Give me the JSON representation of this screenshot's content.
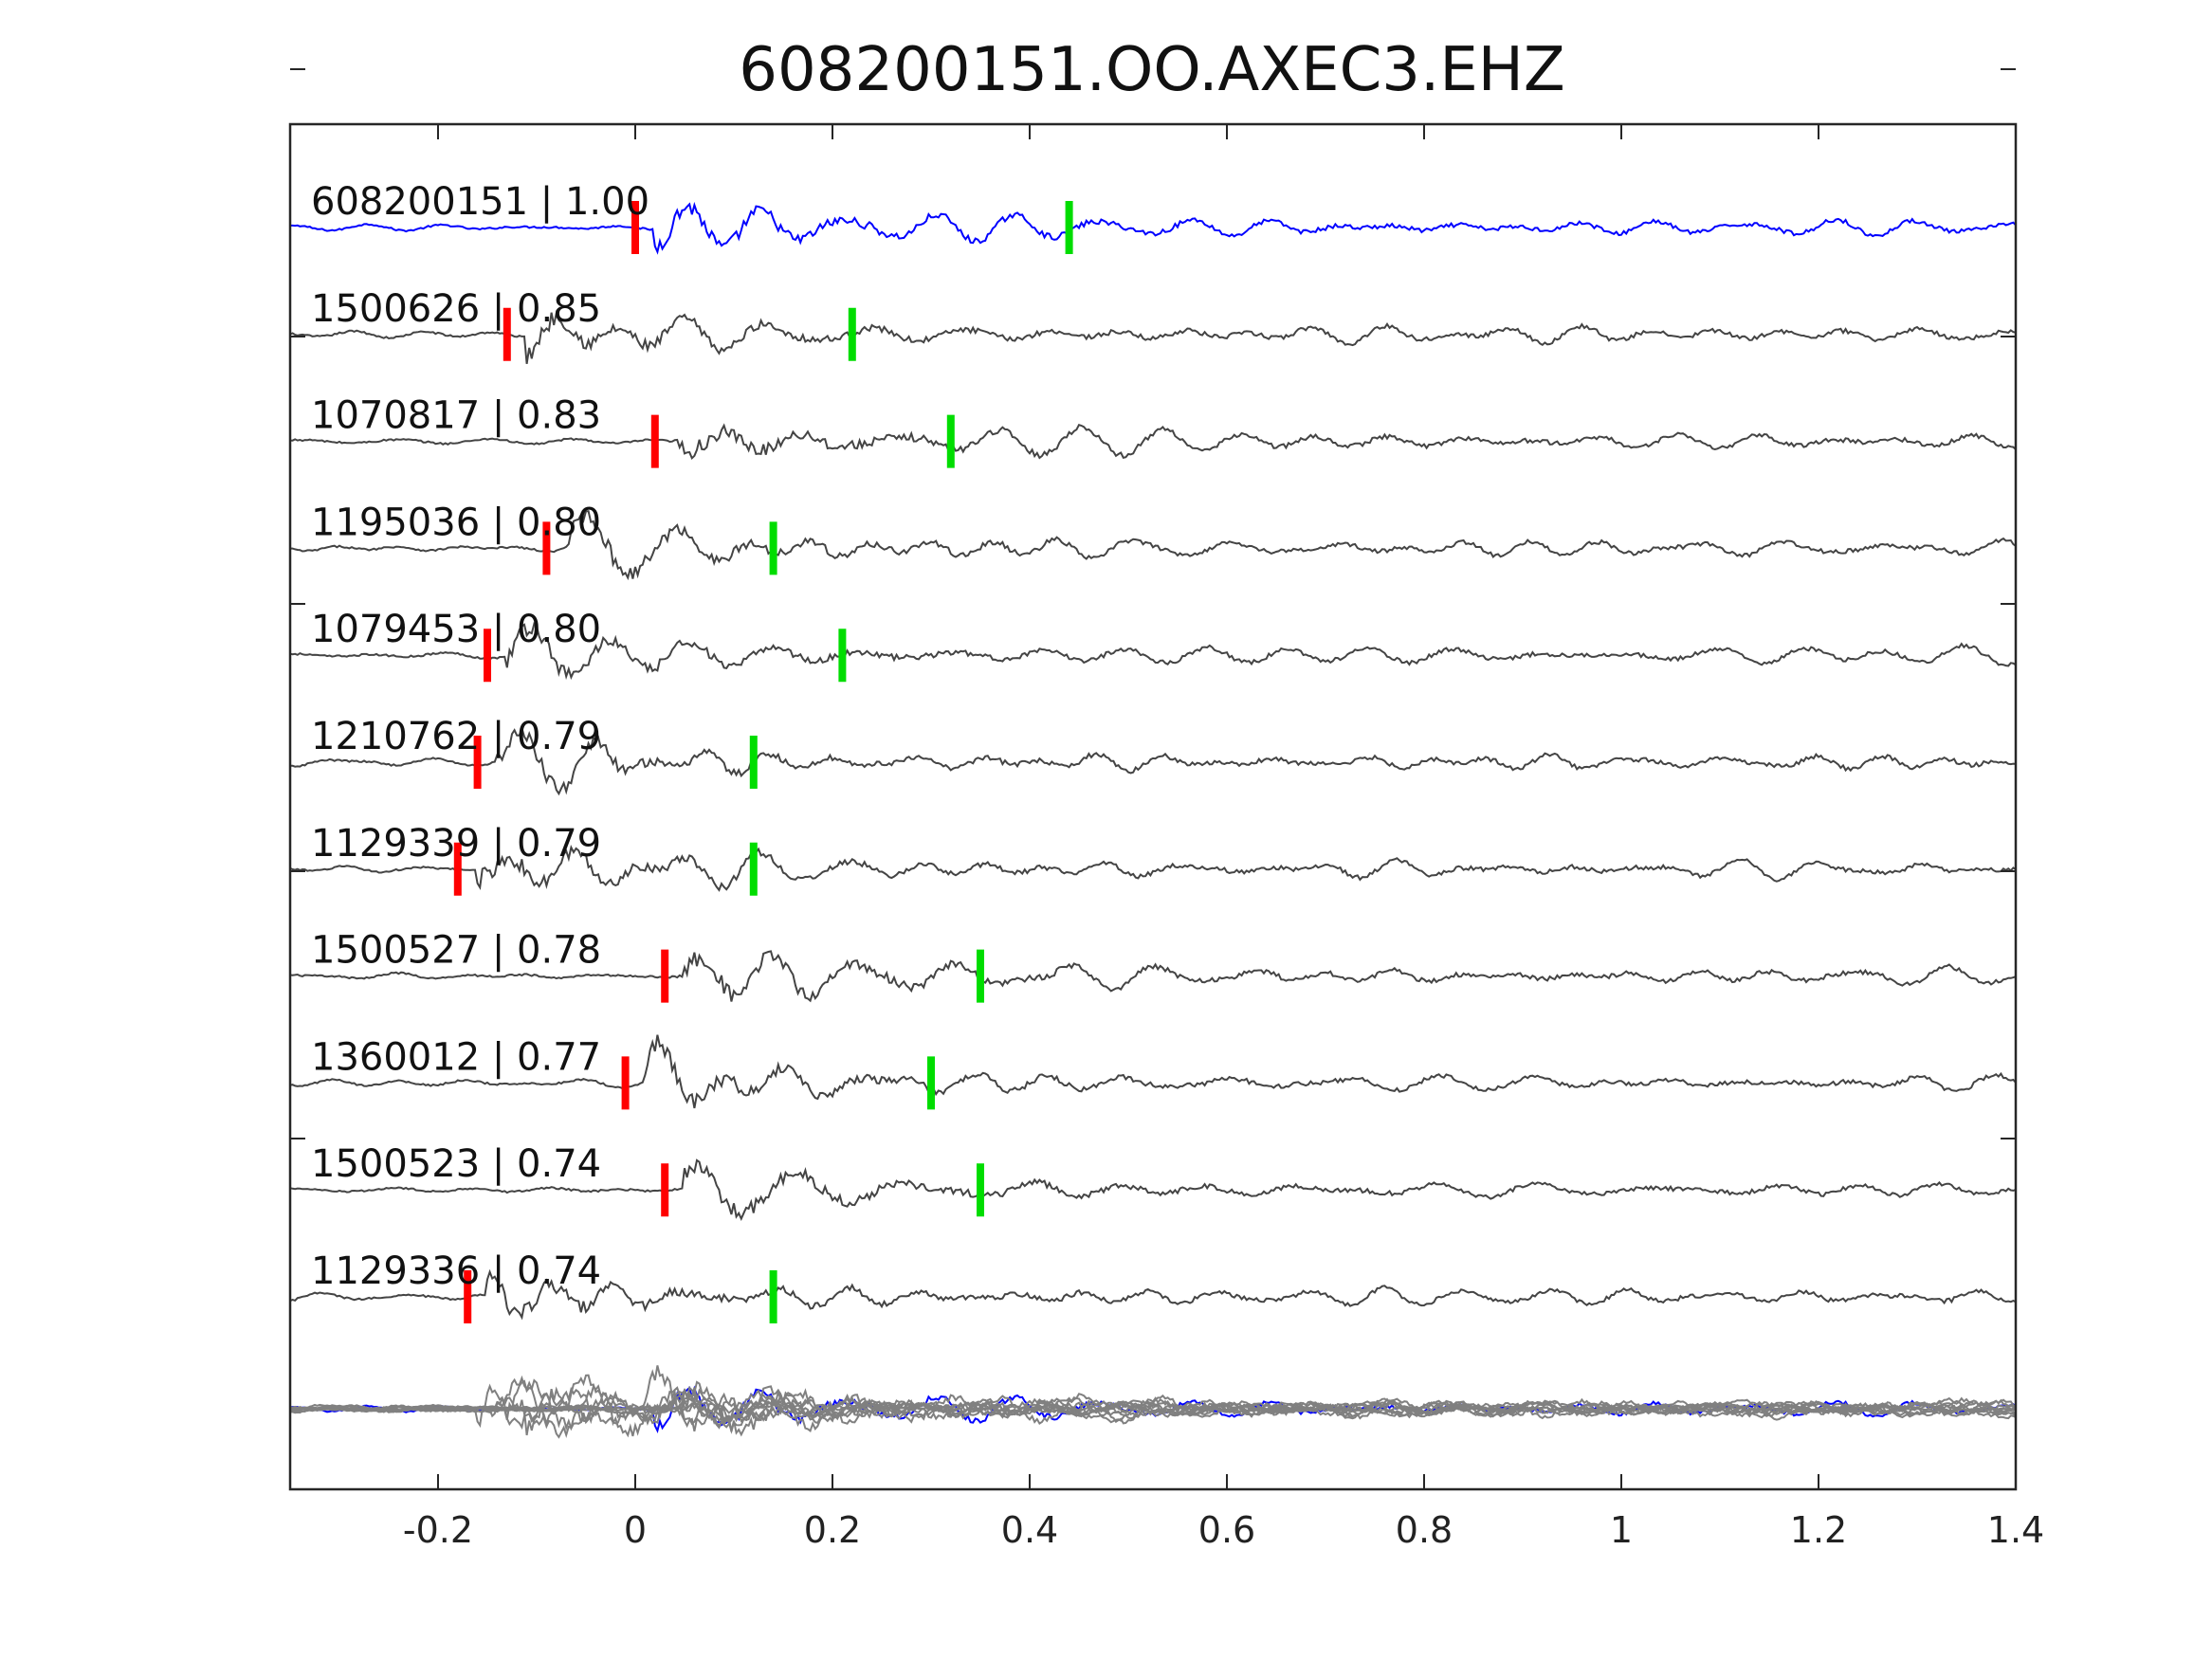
{
  "chart_data": {
    "type": "line",
    "title": "608200151.OO.AXEC3.EHZ",
    "xlabel": "",
    "ylabel": "",
    "xlim": [
      -0.35,
      1.4
    ],
    "x_ticks": [
      -0.2,
      0,
      0.2,
      0.4,
      0.6,
      0.8,
      1,
      1.2,
      1.4
    ],
    "x_tick_labels": [
      "-0.2",
      "0",
      "0.2",
      "0.4",
      "0.6",
      "0.8",
      "1",
      "1.2",
      "1.4"
    ],
    "grid": false,
    "legend": "none",
    "colors": {
      "template": "#0000ff",
      "match": "#444444",
      "stack": "#808080",
      "p_pick": "#ff0000",
      "s_pick": "#00dd00"
    },
    "traces": [
      {
        "label": "608200151 | 1.00",
        "correlation": 1.0,
        "p_pick": 0.0,
        "s_pick": 0.44
      },
      {
        "label": "1500626 | 0.85",
        "correlation": 0.85,
        "p_pick": -0.13,
        "s_pick": 0.22
      },
      {
        "label": "1070817 | 0.83",
        "correlation": 0.83,
        "p_pick": 0.02,
        "s_pick": 0.32
      },
      {
        "label": "1195036 | 0.80",
        "correlation": 0.8,
        "p_pick": -0.09,
        "s_pick": 0.14
      },
      {
        "label": "1079453 | 0.80",
        "correlation": 0.8,
        "p_pick": -0.15,
        "s_pick": 0.21
      },
      {
        "label": "1210762 | 0.79",
        "correlation": 0.79,
        "p_pick": -0.16,
        "s_pick": 0.12
      },
      {
        "label": "1129339 | 0.79",
        "correlation": 0.79,
        "p_pick": -0.18,
        "s_pick": 0.12
      },
      {
        "label": "1500527 | 0.78",
        "correlation": 0.78,
        "p_pick": 0.03,
        "s_pick": 0.35
      },
      {
        "label": "1360012 | 0.77",
        "correlation": 0.77,
        "p_pick": -0.01,
        "s_pick": 0.3
      },
      {
        "label": "1500523 | 0.74",
        "correlation": 0.74,
        "p_pick": 0.03,
        "s_pick": 0.35
      },
      {
        "label": "1129336 | 0.74",
        "correlation": 0.74,
        "p_pick": -0.17,
        "s_pick": 0.14
      }
    ]
  }
}
